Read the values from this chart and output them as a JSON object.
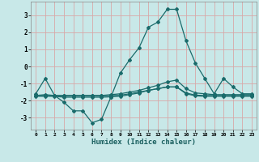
{
  "xlabel": "Humidex (Indice chaleur)",
  "ylabel": "",
  "background_color": "#c8e8e8",
  "grid_color": "#d8a8a8",
  "line_color": "#1a6b6b",
  "x_ticks": [
    0,
    1,
    2,
    3,
    4,
    5,
    6,
    7,
    8,
    9,
    10,
    11,
    12,
    13,
    14,
    15,
    16,
    17,
    18,
    19,
    20,
    21,
    22,
    23
  ],
  "ylim": [
    -3.7,
    3.8
  ],
  "xlim": [
    -0.5,
    23.5
  ],
  "series": [
    {
      "x": [
        0,
        1,
        2,
        3,
        4,
        5,
        6,
        7,
        8,
        9,
        10,
        11,
        12,
        13,
        14,
        15,
        16,
        17,
        18,
        19,
        20,
        21,
        22,
        23
      ],
      "y": [
        -1.6,
        -0.7,
        -1.7,
        -2.1,
        -2.6,
        -2.6,
        -3.3,
        -3.1,
        -1.8,
        -0.4,
        0.4,
        1.1,
        2.3,
        2.6,
        3.35,
        3.35,
        1.5,
        0.2,
        -0.7,
        -1.6,
        -0.7,
        -1.2,
        -1.6,
        -1.6
      ]
    },
    {
      "x": [
        0,
        1,
        2,
        3,
        4,
        5,
        6,
        7,
        8,
        9,
        10,
        11,
        12,
        13,
        14,
        15,
        16,
        17,
        18,
        19,
        20,
        21,
        22,
        23
      ],
      "y": [
        -1.7,
        -1.65,
        -1.7,
        -1.7,
        -1.7,
        -1.7,
        -1.7,
        -1.7,
        -1.65,
        -1.6,
        -1.5,
        -1.4,
        -1.25,
        -1.1,
        -0.9,
        -0.8,
        -1.3,
        -1.55,
        -1.6,
        -1.65,
        -1.65,
        -1.65,
        -1.65,
        -1.65
      ]
    },
    {
      "x": [
        0,
        1,
        2,
        3,
        4,
        5,
        6,
        7,
        8,
        9,
        10,
        11,
        12,
        13,
        14,
        15,
        16,
        17,
        18,
        19,
        20,
        21,
        22,
        23
      ],
      "y": [
        -1.75,
        -1.75,
        -1.75,
        -1.8,
        -1.8,
        -1.8,
        -1.8,
        -1.8,
        -1.78,
        -1.75,
        -1.65,
        -1.55,
        -1.4,
        -1.3,
        -1.2,
        -1.2,
        -1.6,
        -1.72,
        -1.75,
        -1.75,
        -1.75,
        -1.75,
        -1.75,
        -1.75
      ]
    },
    {
      "x": [
        0,
        1,
        2,
        3,
        4,
        5,
        6,
        7,
        8,
        9,
        10,
        11,
        12,
        13,
        14,
        15,
        16,
        17,
        18,
        19,
        20,
        21,
        22,
        23
      ],
      "y": [
        -1.7,
        -1.7,
        -1.7,
        -1.72,
        -1.72,
        -1.72,
        -1.72,
        -1.72,
        -1.7,
        -1.68,
        -1.6,
        -1.5,
        -1.4,
        -1.3,
        -1.2,
        -1.2,
        -1.55,
        -1.68,
        -1.7,
        -1.7,
        -1.7,
        -1.7,
        -1.7,
        -1.7
      ]
    }
  ]
}
